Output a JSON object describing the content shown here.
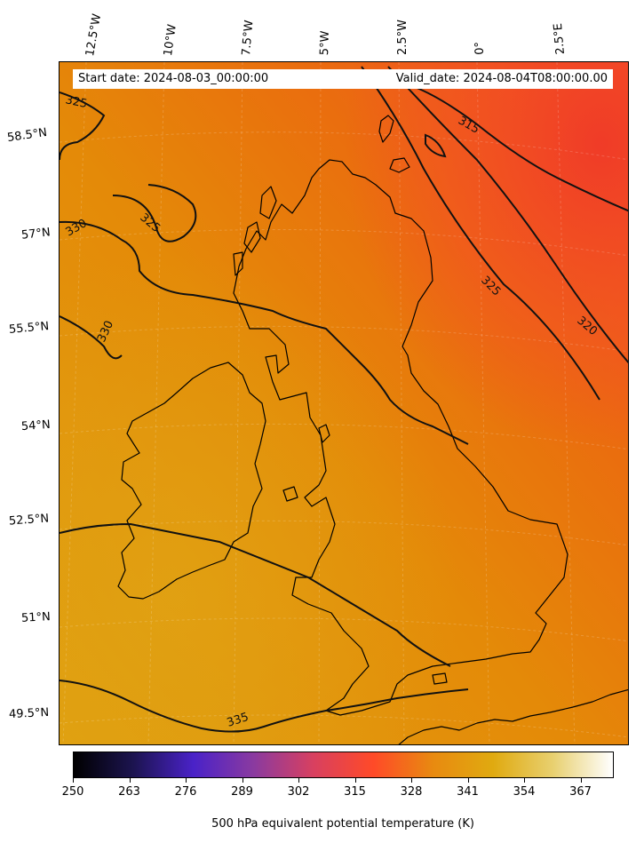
{
  "info": {
    "start_date": "Start date: 2024-08-03_00:00:00",
    "valid_date": "Valid_date: 2024-08-04T08:00:00.00"
  },
  "longitude_labels": [
    "12.5°W",
    "10°W",
    "7.5°W",
    "5°W",
    "2.5°W",
    "0°",
    "2.5°E"
  ],
  "latitude_labels": [
    "58.5°N",
    "57°N",
    "55.5°N",
    "54°N",
    "52.5°N",
    "51°N",
    "49.5°N"
  ],
  "contour_labels": [
    "325",
    "325",
    "330",
    "330",
    "315",
    "325",
    "320",
    "335"
  ],
  "colorbar": {
    "ticks": [
      "250",
      "263",
      "276",
      "289",
      "302",
      "315",
      "328",
      "341",
      "354",
      "367"
    ],
    "title": "500 hPa equivalent potential temperature (K)",
    "colormap": [
      "#000000",
      "#1c1450",
      "#4a22c8",
      "#8a3aa0",
      "#d84060",
      "#ff4a28",
      "#e88a10",
      "#e0aa10",
      "#e8d070",
      "#ffffff"
    ]
  }
}
